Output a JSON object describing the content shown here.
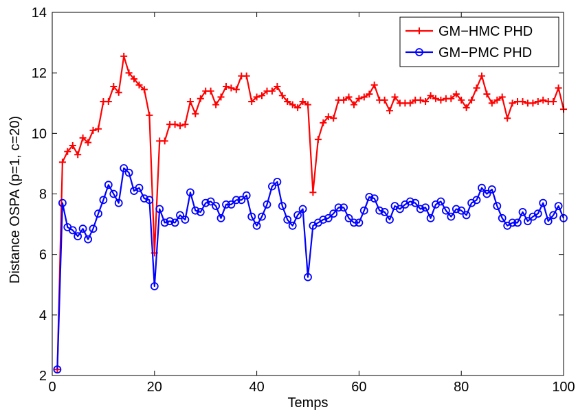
{
  "chart_data": {
    "type": "line",
    "title": "",
    "xlabel": "Temps",
    "ylabel": "Distance OSPA (p=1, c=20)",
    "xlim": [
      0,
      100
    ],
    "ylim": [
      2,
      14
    ],
    "xticks": [
      0,
      20,
      40,
      60,
      80,
      100
    ],
    "yticks": [
      2,
      4,
      6,
      8,
      10,
      12,
      14
    ],
    "grid": false,
    "legend_position": "top-right",
    "x": [
      1,
      2,
      3,
      4,
      5,
      6,
      7,
      8,
      9,
      10,
      11,
      12,
      13,
      14,
      15,
      16,
      17,
      18,
      19,
      20,
      21,
      22,
      23,
      24,
      25,
      26,
      27,
      28,
      29,
      30,
      31,
      32,
      33,
      34,
      35,
      36,
      37,
      38,
      39,
      40,
      41,
      42,
      43,
      44,
      45,
      46,
      47,
      48,
      49,
      50,
      51,
      52,
      53,
      54,
      55,
      56,
      57,
      58,
      59,
      60,
      61,
      62,
      63,
      64,
      65,
      66,
      67,
      68,
      69,
      70,
      71,
      72,
      73,
      74,
      75,
      76,
      77,
      78,
      79,
      80,
      81,
      82,
      83,
      84,
      85,
      86,
      87,
      88,
      89,
      90,
      91,
      92,
      93,
      94,
      95,
      96,
      97,
      98,
      99,
      100
    ],
    "series": [
      {
        "name": "GM−HMC PHD",
        "color": "#ff0000",
        "marker": "plus",
        "values": [
          2.2,
          9.05,
          9.4,
          9.6,
          9.3,
          9.85,
          9.7,
          10.1,
          10.15,
          11.05,
          11.05,
          11.55,
          11.35,
          12.55,
          12.0,
          11.8,
          11.6,
          11.45,
          10.6,
          6.05,
          9.75,
          9.75,
          10.3,
          10.3,
          10.25,
          10.3,
          11.05,
          10.65,
          11.15,
          11.4,
          11.4,
          10.95,
          11.2,
          11.55,
          11.5,
          11.45,
          11.9,
          11.9,
          11.05,
          11.2,
          11.25,
          11.4,
          11.4,
          11.55,
          11.25,
          11.05,
          10.95,
          10.85,
          11.05,
          10.95,
          8.05,
          9.8,
          10.35,
          10.55,
          10.5,
          11.1,
          11.1,
          11.2,
          10.95,
          11.15,
          11.2,
          11.3,
          11.6,
          11.1,
          11.1,
          10.75,
          11.2,
          11.0,
          11.0,
          11.0,
          11.1,
          11.1,
          11.05,
          11.25,
          11.15,
          11.1,
          11.15,
          11.15,
          11.3,
          11.1,
          10.85,
          11.1,
          11.5,
          11.9,
          11.3,
          11.0,
          11.1,
          11.2,
          10.5,
          11.0,
          11.05,
          11.05,
          11.0,
          11.0,
          11.05,
          11.1,
          11.05,
          11.05,
          11.5,
          10.8
        ]
      },
      {
        "name": "GM−PMC PHD",
        "color": "#0000ff",
        "marker": "circle",
        "values": [
          2.2,
          7.7,
          6.9,
          6.8,
          6.6,
          6.85,
          6.5,
          6.85,
          7.35,
          7.8,
          8.3,
          8.0,
          7.7,
          8.85,
          8.7,
          8.1,
          8.2,
          7.85,
          7.8,
          4.95,
          7.5,
          7.05,
          7.1,
          7.05,
          7.3,
          7.15,
          8.05,
          7.45,
          7.4,
          7.7,
          7.75,
          7.6,
          7.2,
          7.65,
          7.65,
          7.8,
          7.8,
          7.95,
          7.25,
          6.95,
          7.25,
          7.65,
          8.25,
          8.4,
          7.6,
          7.15,
          6.95,
          7.3,
          7.5,
          5.25,
          6.95,
          7.05,
          7.15,
          7.2,
          7.35,
          7.55,
          7.55,
          7.2,
          7.05,
          7.05,
          7.45,
          7.9,
          7.85,
          7.45,
          7.4,
          7.15,
          7.6,
          7.5,
          7.65,
          7.75,
          7.7,
          7.5,
          7.55,
          7.2,
          7.65,
          7.75,
          7.45,
          7.25,
          7.5,
          7.45,
          7.3,
          7.7,
          7.8,
          8.2,
          8.0,
          8.15,
          7.6,
          7.2,
          6.95,
          7.05,
          7.05,
          7.4,
          7.1,
          7.25,
          7.35,
          7.7,
          7.1,
          7.3,
          7.6,
          7.2
        ]
      }
    ]
  }
}
